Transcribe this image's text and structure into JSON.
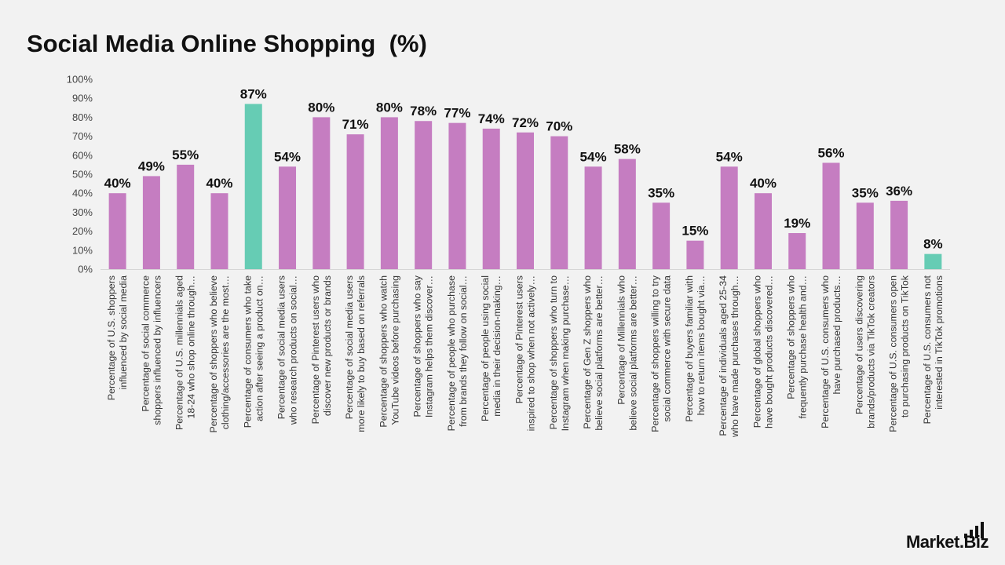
{
  "title": "Social Media Online Shopping  (%)",
  "brand": {
    "name": "Market.Biz",
    "icon": "bar-chart-logo-icon"
  },
  "chart_data": {
    "type": "bar",
    "ylim": [
      0,
      100
    ],
    "y_ticks": [
      "0%",
      "10%",
      "20%",
      "30%",
      "40%",
      "50%",
      "60%",
      "70%",
      "80%",
      "90%",
      "100%"
    ],
    "grid": false,
    "colors": {
      "default": "#c57dc1",
      "highlight": "#66ccb4"
    },
    "categories": [
      [
        "Percentage of U.S. shoppers",
        "influenced by social media"
      ],
      [
        "Percentage of social commerce",
        "shoppers influenced by influencers"
      ],
      [
        "Percentage of U.S. millennials aged",
        "18-24 who shop online through…"
      ],
      [
        "Percentage of shoppers who believe",
        "clothing/accessories are the most…"
      ],
      [
        "Percentage of consumers who take",
        "action after seeing a product on…"
      ],
      [
        "Percentage of social media users",
        "who research products on social…"
      ],
      [
        "Percentage of Pinterest users who",
        "discover new products or brands"
      ],
      [
        "Percentage of social media users",
        "more likely to buy based on referrals"
      ],
      [
        "Percentage of shoppers who watch",
        "YouTube videos before purchasing"
      ],
      [
        "Percentage of shoppers who say",
        "Instagram helps them discover…"
      ],
      [
        "Percentage of people who purchase",
        "from brands they follow on social…"
      ],
      [
        "Percentage of people using social",
        "media in their decision-making…"
      ],
      [
        "Percentage of Pinterest users",
        "inspired to shop when not actively…"
      ],
      [
        "Percentage of shoppers who turn to",
        "Instagram when making purchase…"
      ],
      [
        "Percentage of Gen Z shoppers who",
        "believe social platforms are better…"
      ],
      [
        "Percentage of Millennials who",
        "believe social platforms are better…"
      ],
      [
        "Percentage of shoppers willing to try",
        "social commerce with secure data"
      ],
      [
        "Percentage of buyers familiar with",
        "how to return items bought via…"
      ],
      [
        "Percentage of individuals aged 25-34",
        "who have made purchases through…"
      ],
      [
        "Percentage of global shoppers who",
        "have bought products discovered…"
      ],
      [
        "Percentage of shoppers who",
        "frequently purchase health and…"
      ],
      [
        "Percentage of U.S. consumers who",
        "have purchased products…"
      ],
      [
        "Percentage of users discovering",
        "brands/products via TikTok creators"
      ],
      [
        "Percentage of U.S. consumers open",
        "to purchasing products on TikTok"
      ],
      [
        "Percentage of U.S. consumers not",
        "interested in TikTok promotions"
      ]
    ],
    "values": [
      40,
      49,
      55,
      40,
      87,
      54,
      80,
      71,
      80,
      78,
      77,
      74,
      72,
      70,
      54,
      58,
      35,
      15,
      54,
      40,
      19,
      56,
      35,
      36,
      8
    ],
    "value_labels": [
      "40%",
      "49%",
      "55%",
      "40%",
      "87%",
      "54%",
      "80%",
      "71%",
      "80%",
      "78%",
      "77%",
      "74%",
      "72%",
      "70%",
      "54%",
      "58%",
      "35%",
      "15%",
      "54%",
      "40%",
      "19%",
      "56%",
      "35%",
      "36%",
      "8%"
    ],
    "highlight_indices": [
      4,
      24
    ]
  }
}
